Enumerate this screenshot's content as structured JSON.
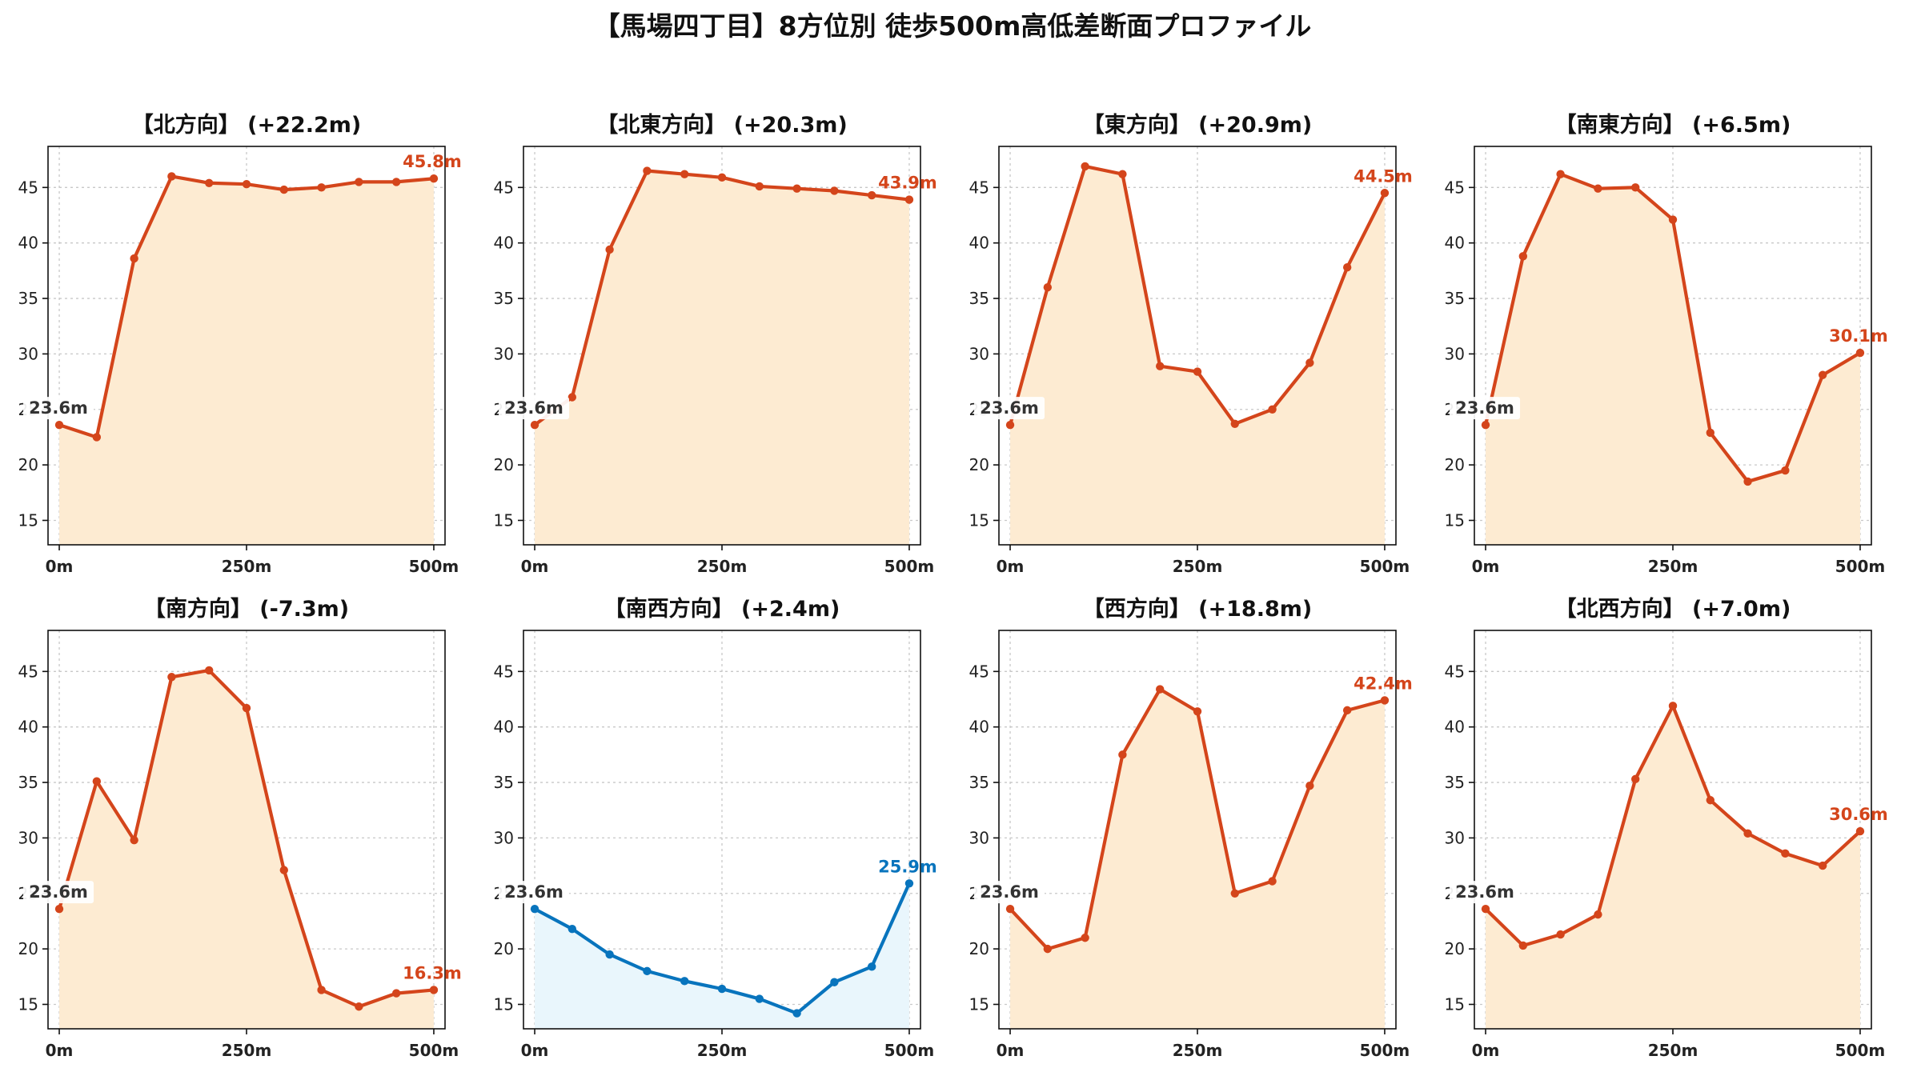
{
  "title": "【馬場四丁目】8方位別 徒歩500m高低差断面プロファイル",
  "colors": {
    "line_default": "#d4451b",
    "fill_default": "#fdebd2",
    "line_alt": "#0874bd",
    "fill_alt": "#e9f6fc",
    "start_label": "#333333",
    "grid": "#c8c8c8"
  },
  "chart_data": [
    {
      "type": "area",
      "title": "【北方向】 (+22.2m)",
      "x": [
        0,
        50,
        100,
        150,
        200,
        250,
        300,
        350,
        400,
        450,
        500
      ],
      "values": [
        23.6,
        22.5,
        38.6,
        46.0,
        45.4,
        45.3,
        44.8,
        45.0,
        45.5,
        45.5,
        45.8
      ],
      "start_label": "23.6m",
      "end_label": "45.8m",
      "theme": "orange"
    },
    {
      "type": "area",
      "title": "【北東方向】 (+20.3m)",
      "x": [
        0,
        50,
        100,
        150,
        200,
        250,
        300,
        350,
        400,
        450,
        500
      ],
      "values": [
        23.6,
        26.1,
        39.4,
        46.5,
        46.2,
        45.9,
        45.1,
        44.9,
        44.7,
        44.3,
        43.9
      ],
      "start_label": "23.6m",
      "end_label": "43.9m",
      "theme": "orange"
    },
    {
      "type": "area",
      "title": "【東方向】 (+20.9m)",
      "x": [
        0,
        50,
        100,
        150,
        200,
        250,
        300,
        350,
        400,
        450,
        500
      ],
      "values": [
        23.6,
        36.0,
        46.9,
        46.2,
        28.9,
        28.4,
        23.7,
        25.0,
        29.2,
        37.8,
        44.5
      ],
      "start_label": "23.6m",
      "end_label": "44.5m",
      "theme": "orange"
    },
    {
      "type": "area",
      "title": "【南東方向】 (+6.5m)",
      "x": [
        0,
        50,
        100,
        150,
        200,
        250,
        300,
        350,
        400,
        450,
        500
      ],
      "values": [
        23.6,
        38.8,
        46.2,
        44.9,
        45.0,
        42.1,
        22.9,
        18.5,
        19.5,
        28.1,
        30.1
      ],
      "start_label": "23.6m",
      "end_label": "30.1m",
      "theme": "orange"
    },
    {
      "type": "area",
      "title": "【南方向】 (-7.3m)",
      "x": [
        0,
        50,
        100,
        150,
        200,
        250,
        300,
        350,
        400,
        450,
        500
      ],
      "values": [
        23.6,
        35.1,
        29.8,
        44.5,
        45.1,
        41.7,
        27.1,
        16.3,
        14.8,
        16.0,
        16.3
      ],
      "start_label": "23.6m",
      "end_label": "16.3m",
      "theme": "orange"
    },
    {
      "type": "area",
      "title": "【南西方向】 (+2.4m)",
      "x": [
        0,
        50,
        100,
        150,
        200,
        250,
        300,
        350,
        400,
        450,
        500
      ],
      "values": [
        23.6,
        21.8,
        19.5,
        18.0,
        17.1,
        16.4,
        15.5,
        14.2,
        17.0,
        18.4,
        25.9
      ],
      "start_label": "23.6m",
      "end_label": "25.9m",
      "theme": "blue"
    },
    {
      "type": "area",
      "title": "【西方向】 (+18.8m)",
      "x": [
        0,
        50,
        100,
        150,
        200,
        250,
        300,
        350,
        400,
        450,
        500
      ],
      "values": [
        23.6,
        20.0,
        21.0,
        37.5,
        43.4,
        41.4,
        25.0,
        26.1,
        34.7,
        41.5,
        42.4
      ],
      "start_label": "23.6m",
      "end_label": "42.4m",
      "theme": "orange"
    },
    {
      "type": "area",
      "title": "【北西方向】 (+7.0m)",
      "x": [
        0,
        50,
        100,
        150,
        200,
        250,
        300,
        350,
        400,
        450,
        500
      ],
      "values": [
        23.6,
        20.3,
        21.3,
        23.1,
        35.3,
        41.9,
        33.4,
        30.4,
        28.6,
        27.5,
        30.6
      ],
      "start_label": "23.6m",
      "end_label": "30.6m",
      "theme": "orange"
    }
  ],
  "axes": {
    "ylim": [
      12.8,
      48.7
    ],
    "xlim": [
      -15,
      515
    ],
    "yticks": [
      15,
      20,
      25,
      30,
      35,
      40,
      45
    ],
    "ytick_labels": [
      "15",
      "20",
      "25",
      "30",
      "35",
      "40",
      "45"
    ],
    "xticks": [
      0,
      250,
      500
    ],
    "xtick_labels": [
      "0m",
      "250m",
      "500m"
    ],
    "grid": true
  }
}
